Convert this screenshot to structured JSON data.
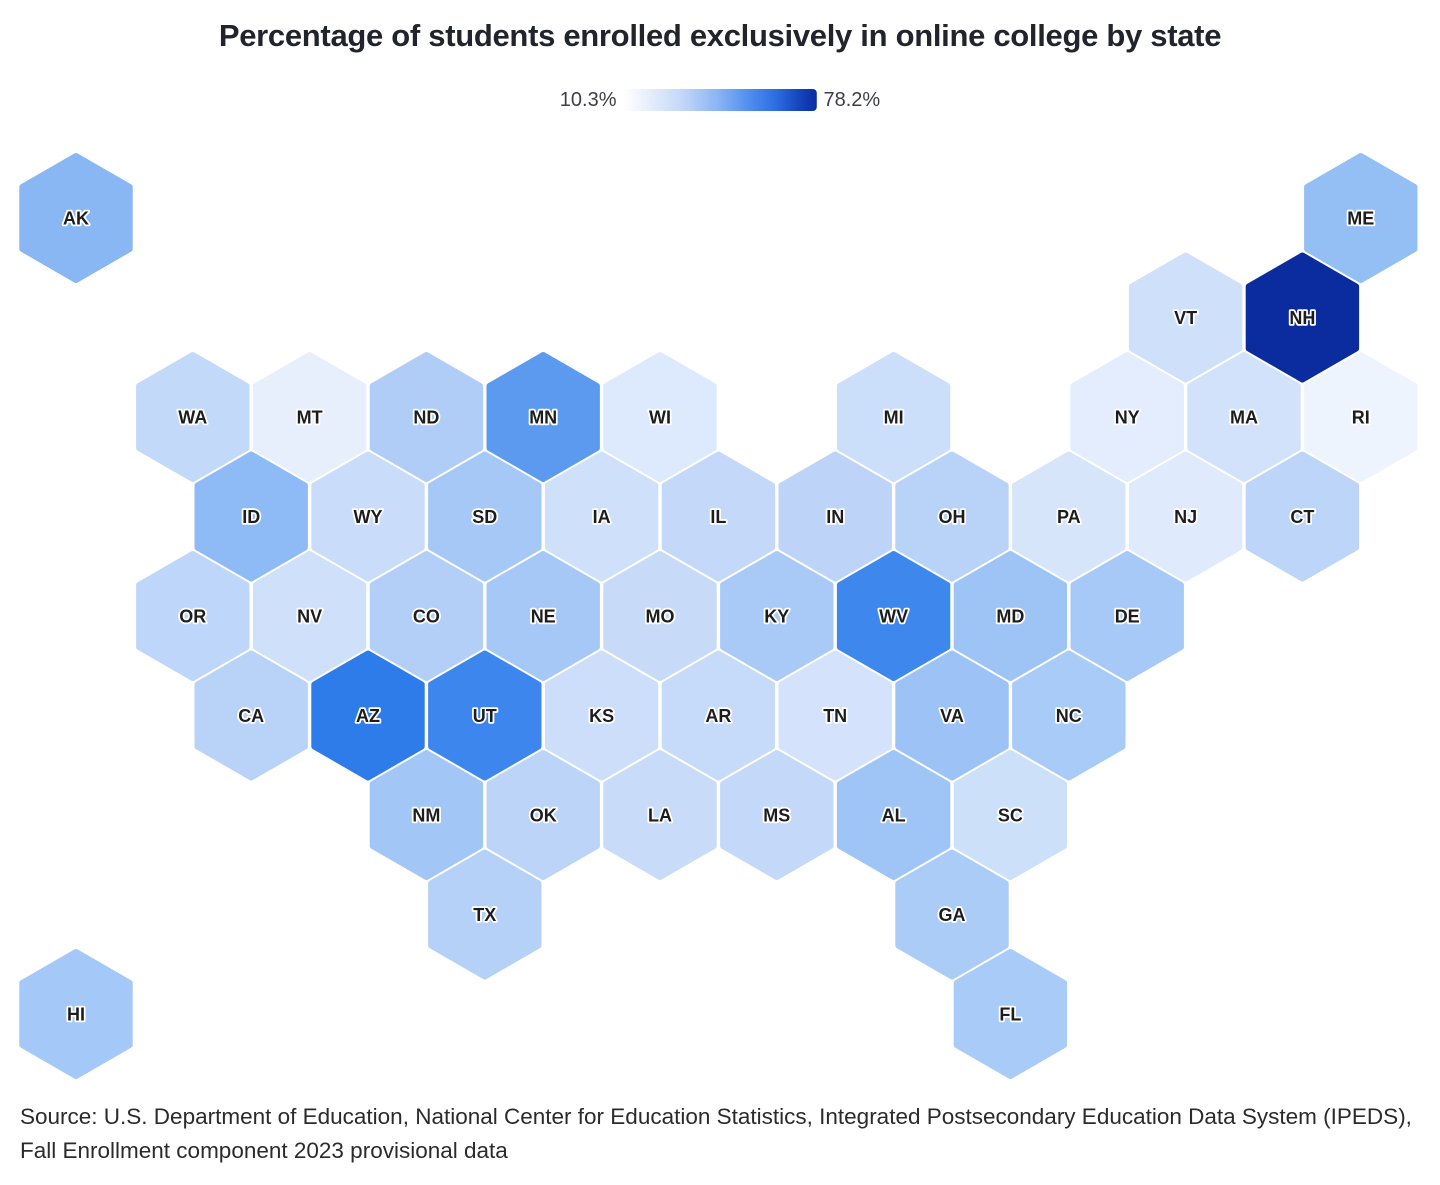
{
  "page": {
    "title": "Percentage of students enrolled exclusively in online college by state",
    "source": "Source: U.S. Department of Education, National Center for Education Statistics, Integrated Postsecondary Education Data System (IPEDS), Fall Enrollment component 2023 provisional data"
  },
  "legend": {
    "min_label": "10.3%",
    "max_label": "78.2%",
    "min_value": 10.3,
    "max_value": 78.2,
    "unit": "%",
    "gradient_colors": [
      "#ffffff",
      "#c3d8f9",
      "#5490ef",
      "#2e6fe4",
      "#0a2ca0"
    ]
  },
  "chart_data": {
    "type": "heatmap",
    "subtype": "usa-hex-tile-choropleth",
    "title": "Percentage of students enrolled exclusively in online college by state",
    "scale": {
      "min": 10.3,
      "max": 78.2,
      "unit": "%",
      "min_color": "#ffffff",
      "max_color": "#0a2ca0"
    },
    "values_note": "Only the scale endpoints (10.3% and 78.2%) are labeled in the figure; per-state values are estimated from each hexagon's fill color.",
    "states": [
      {
        "abbr": "AK",
        "row": 0,
        "col": 0,
        "color": "#88b7f4",
        "value": 28
      },
      {
        "abbr": "ME",
        "row": 0,
        "col": 22,
        "color": "#94bff5",
        "value": 27
      },
      {
        "abbr": "VT",
        "row": 1,
        "col": 19,
        "color": "#cfe0fb",
        "value": 14
      },
      {
        "abbr": "NH",
        "row": 1,
        "col": 21,
        "color": "#0a2c9f",
        "value": 78.2
      },
      {
        "abbr": "WA",
        "row": 2,
        "col": 2,
        "color": "#c3d9f9",
        "value": 18
      },
      {
        "abbr": "MT",
        "row": 2,
        "col": 4,
        "color": "#e7effd",
        "value": 12
      },
      {
        "abbr": "ND",
        "row": 2,
        "col": 6,
        "color": "#b0cdf7",
        "value": 22
      },
      {
        "abbr": "MN",
        "row": 2,
        "col": 8,
        "color": "#5c9af0",
        "value": 35
      },
      {
        "abbr": "WI",
        "row": 2,
        "col": 10,
        "color": "#dde9fc",
        "value": 13.5
      },
      {
        "abbr": "MI",
        "row": 2,
        "col": 14,
        "color": "#ccdffa",
        "value": 16
      },
      {
        "abbr": "NY",
        "row": 2,
        "col": 18,
        "color": "#e3edfd",
        "value": 13
      },
      {
        "abbr": "MA",
        "row": 2,
        "col": 20,
        "color": "#d3e2fb",
        "value": 15
      },
      {
        "abbr": "RI",
        "row": 2,
        "col": 22,
        "color": "#eef4fe",
        "value": 10.3
      },
      {
        "abbr": "ID",
        "row": 3,
        "col": 3,
        "color": "#8ebbf5",
        "value": 28
      },
      {
        "abbr": "WY",
        "row": 3,
        "col": 5,
        "color": "#c9dcfa",
        "value": 17
      },
      {
        "abbr": "SD",
        "row": 3,
        "col": 7,
        "color": "#a5c8f7",
        "value": 23
      },
      {
        "abbr": "IA",
        "row": 3,
        "col": 9,
        "color": "#cfe0fb",
        "value": 15.5
      },
      {
        "abbr": "IL",
        "row": 3,
        "col": 11,
        "color": "#c4d9f9",
        "value": 18
      },
      {
        "abbr": "IN",
        "row": 3,
        "col": 13,
        "color": "#bdd4f8",
        "value": 19.5
      },
      {
        "abbr": "OH",
        "row": 3,
        "col": 15,
        "color": "#b9d2f8",
        "value": 19
      },
      {
        "abbr": "PA",
        "row": 3,
        "col": 17,
        "color": "#d7e5fb",
        "value": 14.5
      },
      {
        "abbr": "NJ",
        "row": 3,
        "col": 19,
        "color": "#dfeafc",
        "value": 13.5
      },
      {
        "abbr": "CT",
        "row": 3,
        "col": 21,
        "color": "#bdd5f8",
        "value": 19
      },
      {
        "abbr": "OR",
        "row": 4,
        "col": 2,
        "color": "#bed6f9",
        "value": 18.5
      },
      {
        "abbr": "NV",
        "row": 4,
        "col": 4,
        "color": "#cfe0fb",
        "value": 15.5
      },
      {
        "abbr": "CO",
        "row": 4,
        "col": 6,
        "color": "#b4cff7",
        "value": 21
      },
      {
        "abbr": "NE",
        "row": 4,
        "col": 8,
        "color": "#a5c8f7",
        "value": 23
      },
      {
        "abbr": "MO",
        "row": 4,
        "col": 10,
        "color": "#c7dbf9",
        "value": 17
      },
      {
        "abbr": "KY",
        "row": 4,
        "col": 12,
        "color": "#a9caf7",
        "value": 23
      },
      {
        "abbr": "WV",
        "row": 4,
        "col": 14,
        "color": "#3d87ed",
        "value": 42
      },
      {
        "abbr": "MD",
        "row": 4,
        "col": 16,
        "color": "#9ec4f6",
        "value": 24
      },
      {
        "abbr": "DE",
        "row": 4,
        "col": 18,
        "color": "#a6c9f7",
        "value": 24
      },
      {
        "abbr": "CA",
        "row": 5,
        "col": 3,
        "color": "#b9d2f8",
        "value": 19
      },
      {
        "abbr": "AZ",
        "row": 5,
        "col": 5,
        "color": "#2e7cea",
        "value": 44
      },
      {
        "abbr": "UT",
        "row": 5,
        "col": 7,
        "color": "#3c86ee",
        "value": 41
      },
      {
        "abbr": "KS",
        "row": 5,
        "col": 9,
        "color": "#cddefa",
        "value": 16
      },
      {
        "abbr": "AR",
        "row": 5,
        "col": 11,
        "color": "#c6daf9",
        "value": 17.5
      },
      {
        "abbr": "TN",
        "row": 5,
        "col": 13,
        "color": "#d4e3fb",
        "value": 14.5
      },
      {
        "abbr": "VA",
        "row": 5,
        "col": 15,
        "color": "#9cc2f6",
        "value": 25
      },
      {
        "abbr": "NC",
        "row": 5,
        "col": 17,
        "color": "#a9cbf7",
        "value": 25
      },
      {
        "abbr": "NM",
        "row": 6,
        "col": 6,
        "color": "#a2c6f6",
        "value": 24
      },
      {
        "abbr": "OK",
        "row": 6,
        "col": 8,
        "color": "#bcd4f8",
        "value": 19
      },
      {
        "abbr": "LA",
        "row": 6,
        "col": 10,
        "color": "#c8dcf9",
        "value": 17
      },
      {
        "abbr": "MS",
        "row": 6,
        "col": 12,
        "color": "#c4d9f9",
        "value": 18
      },
      {
        "abbr": "AL",
        "row": 6,
        "col": 14,
        "color": "#9fc4f6",
        "value": 24
      },
      {
        "abbr": "SC",
        "row": 6,
        "col": 16,
        "color": "#cde0fa",
        "value": 16.5
      },
      {
        "abbr": "TX",
        "row": 7,
        "col": 7,
        "color": "#b6d1f8",
        "value": 20
      },
      {
        "abbr": "GA",
        "row": 7,
        "col": 15,
        "color": "#abccf7",
        "value": 25
      },
      {
        "abbr": "HI",
        "row": 8,
        "col": 0,
        "color": "#a4c8f7",
        "value": 24
      },
      {
        "abbr": "FL",
        "row": 8,
        "col": 16,
        "color": "#a8cbf7",
        "value": 24.5
      }
    ]
  }
}
